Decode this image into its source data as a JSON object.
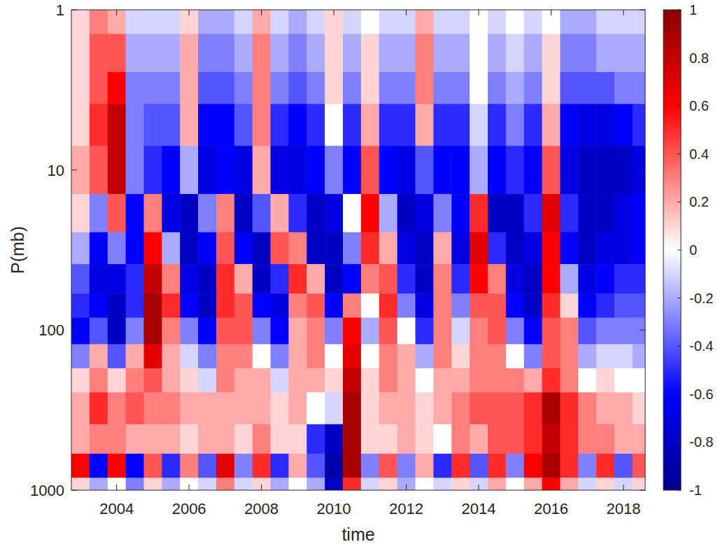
{
  "chart_data": {
    "type": "heatmap",
    "xlabel": "time",
    "ylabel": "P(mb)",
    "x": [
      2003.0,
      2003.5,
      2004.0,
      2004.5,
      2005.0,
      2005.5,
      2006.0,
      2006.5,
      2007.0,
      2007.5,
      2008.0,
      2008.5,
      2009.0,
      2009.5,
      2010.0,
      2010.5,
      2011.0,
      2011.5,
      2012.0,
      2012.5,
      2013.0,
      2013.5,
      2014.0,
      2014.5,
      2015.0,
      2015.5,
      2016.0,
      2016.5,
      2017.0,
      2017.5,
      2018.0,
      2018.5
    ],
    "y": [
      1,
      2,
      3,
      5,
      10,
      20,
      30,
      50,
      70,
      100,
      150,
      200,
      300,
      500,
      700,
      1000
    ],
    "values": [
      [
        0.1,
        0.3,
        0.2,
        -0.1,
        -0.1,
        -0.1,
        0.1,
        -0.2,
        -0.2,
        -0.1,
        0.2,
        -0.1,
        -0.2,
        -0.1,
        0.1,
        -0.1,
        0,
        -0.1,
        -0.1,
        0.2,
        -0.1,
        -0.1,
        0,
        -0.1,
        0,
        -0.1,
        0,
        -0.2,
        -0.2,
        -0.1,
        -0.1,
        -0.1
      ],
      [
        0.1,
        0.4,
        0.4,
        -0.2,
        -0.2,
        -0.2,
        0.2,
        -0.3,
        -0.3,
        -0.2,
        0.3,
        -0.2,
        -0.3,
        -0.2,
        0.1,
        -0.2,
        0.1,
        -0.2,
        -0.2,
        0.3,
        -0.2,
        -0.2,
        0,
        -0.2,
        -0.1,
        -0.2,
        0.1,
        -0.3,
        -0.3,
        -0.2,
        -0.2,
        -0.2
      ],
      [
        0.1,
        0.4,
        0.6,
        -0.3,
        -0.3,
        -0.3,
        0.2,
        -0.4,
        -0.4,
        -0.3,
        0.3,
        -0.3,
        -0.4,
        -0.3,
        0.1,
        -0.3,
        0.1,
        -0.3,
        -0.3,
        0.3,
        -0.3,
        -0.3,
        0,
        -0.3,
        -0.2,
        -0.3,
        0.1,
        -0.4,
        -0.4,
        -0.4,
        -0.3,
        -0.3
      ],
      [
        0.1,
        0.5,
        0.8,
        -0.3,
        -0.4,
        -0.4,
        0.2,
        -0.6,
        -0.6,
        -0.4,
        0.3,
        -0.5,
        -0.6,
        -0.5,
        0,
        -0.5,
        0.2,
        -0.5,
        -0.5,
        0.2,
        -0.5,
        -0.5,
        -0.1,
        -0.5,
        -0.3,
        -0.5,
        0.2,
        -0.6,
        -0.7,
        -0.7,
        -0.6,
        -0.5
      ],
      [
        0.2,
        0.4,
        0.8,
        -0.3,
        -0.5,
        -0.6,
        -0.2,
        -0.7,
        -0.6,
        -0.7,
        0.2,
        -0.7,
        -0.7,
        -0.6,
        -0.3,
        -0.6,
        0.4,
        -0.6,
        -0.7,
        -0.4,
        -0.6,
        -0.6,
        -0.2,
        -0.6,
        -0.5,
        -0.6,
        0.4,
        -0.7,
        -0.8,
        -0.8,
        -0.8,
        -0.7
      ],
      [
        0.1,
        -0.3,
        0.4,
        -0.6,
        0.3,
        -0.7,
        -0.8,
        -0.3,
        0.3,
        -0.8,
        -0.4,
        0.2,
        -0.5,
        -0.8,
        -0.7,
        0,
        0.6,
        -0.2,
        -0.8,
        -0.7,
        -0.3,
        -0.6,
        0.5,
        -0.8,
        -0.8,
        -0.5,
        0.7,
        -0.5,
        -0.8,
        -0.8,
        -0.7,
        -0.6
      ],
      [
        -0.2,
        -0.6,
        -0.3,
        -0.6,
        0.6,
        -0.2,
        -0.8,
        -0.6,
        0.4,
        -0.6,
        -0.8,
        0.4,
        0.3,
        -0.8,
        -0.8,
        -0.3,
        0.5,
        0.2,
        -0.7,
        -0.8,
        0.2,
        -0.7,
        0.7,
        -0.5,
        -0.8,
        -0.7,
        0.6,
        -0.6,
        -0.8,
        -0.7,
        -0.7,
        -0.6
      ],
      [
        -0.4,
        -0.7,
        -0.7,
        -0.5,
        0.8,
        0.3,
        -0.7,
        -0.8,
        0.5,
        0.2,
        -0.8,
        -0.5,
        0.5,
        0.2,
        -0.8,
        -0.6,
        0.3,
        0.4,
        -0.5,
        -0.8,
        0.3,
        -0.5,
        0.6,
        0.3,
        -0.7,
        -0.8,
        0.6,
        -0.2,
        -0.7,
        -0.6,
        -0.5,
        -0.5
      ],
      [
        -0.5,
        -0.6,
        -0.8,
        -0.5,
        0.9,
        0.5,
        -0.6,
        -0.8,
        0.5,
        0.4,
        -0.6,
        -0.7,
        0.3,
        0.4,
        -0.6,
        0.3,
        0,
        0.5,
        -0.3,
        -0.7,
        0.3,
        -0.3,
        0.4,
        0.4,
        -0.6,
        -0.8,
        0.5,
        0.1,
        -0.6,
        -0.5,
        -0.4,
        -0.4
      ],
      [
        -0.6,
        -0.4,
        -0.8,
        -0.3,
        0.9,
        0.3,
        -0.3,
        -0.6,
        0.4,
        0.4,
        -0.3,
        -0.6,
        0.2,
        0.3,
        -0.3,
        0.6,
        -0.2,
        0.4,
        0,
        -0.5,
        0.3,
        -0.1,
        0.3,
        0.4,
        -0.3,
        -0.6,
        0.4,
        0.3,
        -0.4,
        -0.3,
        -0.3,
        -0.3
      ],
      [
        -0.3,
        0.2,
        -0.4,
        0.2,
        0.7,
        0.2,
        -0.1,
        -0.3,
        0.3,
        0.3,
        0,
        -0.3,
        0.2,
        0.3,
        0,
        0.7,
        0,
        0.3,
        0.2,
        -0.2,
        0.3,
        0.1,
        0.3,
        0.3,
        0,
        -0.3,
        0.4,
        0.3,
        -0.2,
        -0.1,
        -0.1,
        -0.2
      ],
      [
        0.1,
        0.3,
        0.1,
        0.3,
        0.4,
        0.2,
        0.1,
        -0.1,
        0.3,
        0.2,
        0.2,
        -0.1,
        0.2,
        0.2,
        0.1,
        0.8,
        0.1,
        0.3,
        0.2,
        0,
        0.2,
        0.2,
        0.3,
        0.3,
        0.3,
        0.2,
        0.5,
        0.3,
        0,
        0.1,
        0,
        0
      ],
      [
        0.2,
        0.5,
        0.3,
        0.4,
        0.3,
        0.3,
        0.2,
        0.2,
        0.2,
        0.2,
        0.2,
        0.1,
        0.2,
        0,
        -0.1,
        0.9,
        0.1,
        0.2,
        0.2,
        0.1,
        0.2,
        0.3,
        0.4,
        0.4,
        0.4,
        0.5,
        0.9,
        0.5,
        0.3,
        0.2,
        0.2,
        0.1
      ],
      [
        0.2,
        0.3,
        0.3,
        0.2,
        0.2,
        0.2,
        0.1,
        0.2,
        0.2,
        0.1,
        0.3,
        0.1,
        0.1,
        -0.5,
        -0.8,
        0.9,
        0.1,
        0.1,
        0.2,
        0.1,
        0,
        0.3,
        0.2,
        0.4,
        0.4,
        0.5,
        0.8,
        0.5,
        0.3,
        0.3,
        0.2,
        0.2
      ],
      [
        0.6,
        -0.6,
        0.6,
        -0.6,
        0.4,
        -0.5,
        0.3,
        -0.4,
        0.7,
        -0.3,
        0.5,
        -0.5,
        0.2,
        -0.4,
        -0.9,
        0.9,
        -0.3,
        0.4,
        -0.3,
        0.2,
        -0.5,
        0.5,
        -0.4,
        0.5,
        -0.3,
        0.6,
        0.9,
        0.5,
        -0.3,
        0.5,
        -0.4,
        0.4
      ],
      [
        0.1,
        -0.2,
        0,
        -0.3,
        0.1,
        -0.2,
        0,
        -0.1,
        0.3,
        -0.1,
        0.1,
        -0.2,
        0,
        -0.2,
        -0.8,
        0.5,
        -0.1,
        0.1,
        -0.2,
        0,
        -0.1,
        0.1,
        -0.1,
        0.2,
        0,
        0.2,
        0.6,
        0.2,
        -0.1,
        0.1,
        -0.1,
        0.1
      ]
    ],
    "xlim": [
      2002.75,
      2018.6
    ],
    "xticks": [
      2004,
      2006,
      2008,
      2010,
      2012,
      2014,
      2016,
      2018
    ],
    "ylim": [
      1000,
      1
    ],
    "yticks": [
      1,
      10,
      100,
      1000
    ],
    "log": "y",
    "colorbar": {
      "range": [
        -1,
        1
      ],
      "ticks": [
        -1,
        -0.8,
        -0.6,
        -0.4,
        -0.2,
        0,
        0.2,
        0.4,
        0.6,
        0.8,
        1
      ]
    }
  }
}
